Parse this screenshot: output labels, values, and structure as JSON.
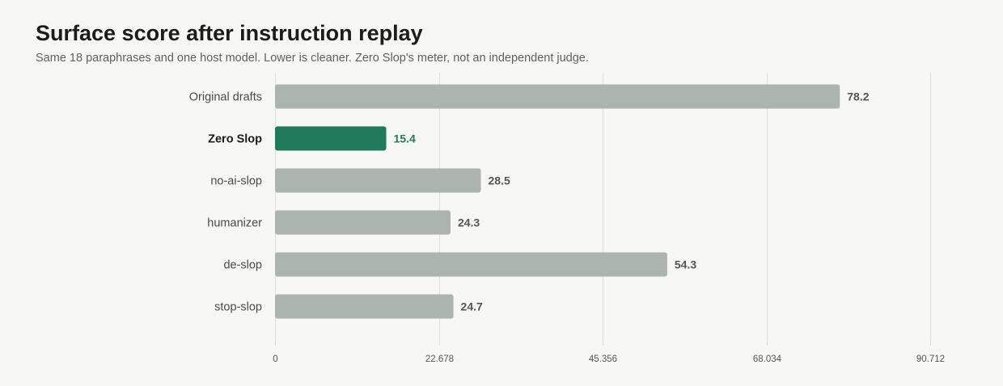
{
  "chart_data": {
    "type": "bar",
    "orientation": "horizontal",
    "title": "Surface score after instruction replay",
    "subtitle": "Same 18 paraphrases and one host model. Lower is cleaner. Zero Slop's meter, not an independent judge.",
    "categories": [
      "Original drafts",
      "Zero Slop",
      "no-ai-slop",
      "humanizer",
      "de-slop",
      "stop-slop"
    ],
    "values": [
      78.2,
      15.4,
      28.5,
      24.3,
      54.3,
      24.7
    ],
    "value_labels": [
      "78.2",
      "15.4",
      "28.5",
      "24.3",
      "54.3",
      "24.7"
    ],
    "highlight": "Zero Slop",
    "xlim": [
      0,
      90.712
    ],
    "x_ticks": [
      0,
      22.678,
      45.356,
      68.034,
      90.712
    ],
    "x_tick_labels": [
      "0",
      "22.678",
      "45.356",
      "68.034",
      "90.712"
    ],
    "grid": true,
    "colors": {
      "bar": "#abb4af",
      "highlight_bar": "#217a5b",
      "highlight_text": "#237a5b",
      "grid": "#dedede",
      "background": "#f7f7f5"
    }
  }
}
